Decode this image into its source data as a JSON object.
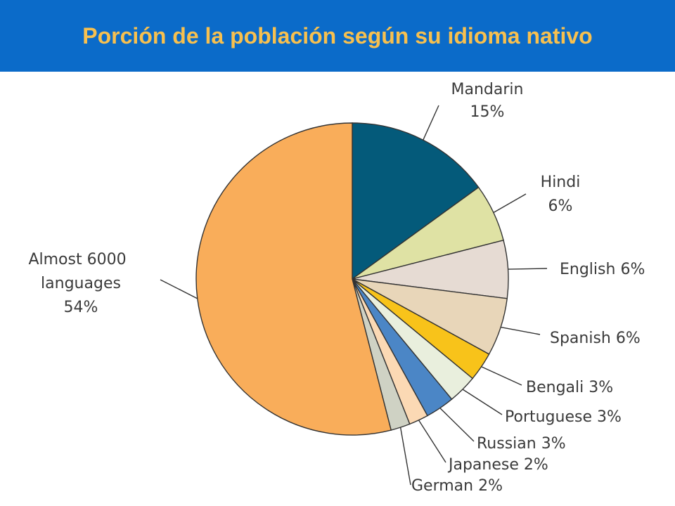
{
  "header": {
    "title": "Porción de la población según su idioma nativo"
  },
  "colors": {
    "header_background": "#0b6bc9",
    "title": "#f7c04f"
  },
  "chart_data": {
    "type": "pie",
    "title": "",
    "unit": "%",
    "slices": [
      {
        "label": "Mandarin",
        "value_label": "15%",
        "value": 15,
        "color": "#045a7a"
      },
      {
        "label": "Hindi",
        "value_label": "6%",
        "value": 6,
        "color": "#dfe2a4"
      },
      {
        "label": "English",
        "value_label": "6%",
        "value": 6,
        "color": "#e6dbd3"
      },
      {
        "label": "Spanish",
        "value_label": "6%",
        "value": 6,
        "color": "#e8d6b9"
      },
      {
        "label": "Bengali",
        "value_label": "3%",
        "value": 3,
        "color": "#f8c31a"
      },
      {
        "label": "Portuguese",
        "value_label": "3%",
        "value": 3,
        "color": "#e9efdd"
      },
      {
        "label": "Russian",
        "value_label": "3%",
        "value": 3,
        "color": "#4b86c6"
      },
      {
        "label": "Japanese",
        "value_label": "2%",
        "value": 2,
        "color": "#fbd9b4"
      },
      {
        "label": "German",
        "value_label": "2%",
        "value": 2,
        "color": "#cfd2c4"
      },
      {
        "label": "Almost 6000 languages",
        "value_label": "54%",
        "value": 54,
        "color": "#f9ad5a"
      }
    ]
  }
}
